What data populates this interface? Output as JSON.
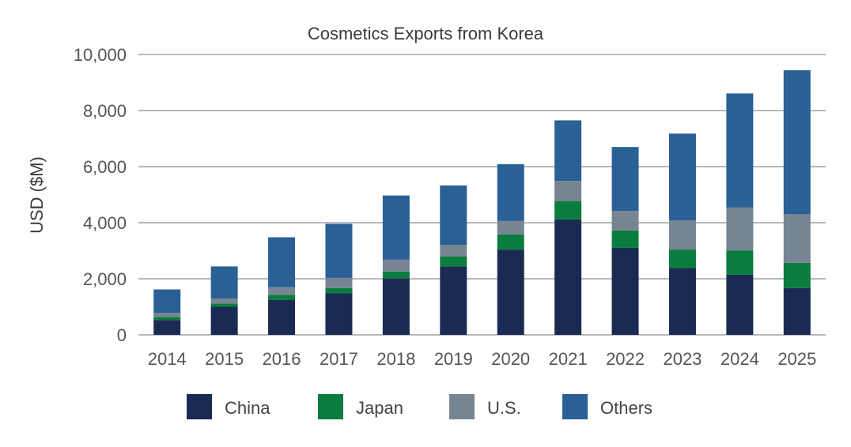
{
  "chart_data": {
    "type": "bar",
    "stacked": true,
    "title": "Cosmetics Exports from Korea",
    "xlabel": "",
    "ylabel": "USD ($M)",
    "ylim": [
      0,
      10000
    ],
    "yticks": [
      0,
      2000,
      4000,
      6000,
      8000,
      10000
    ],
    "ytick_labels": [
      "0",
      "2,000",
      "4,000",
      "6,000",
      "8,000",
      "10,000"
    ],
    "grid": true,
    "legend_position": "bottom",
    "categories": [
      "2014",
      "2015",
      "2016",
      "2017",
      "2018",
      "2019",
      "2020",
      "2021",
      "2022",
      "2023",
      "2024",
      "2025"
    ],
    "series": [
      {
        "name": "China",
        "color": "#1a2a52",
        "values": [
          530,
          1000,
          1250,
          1480,
          2020,
          2440,
          3040,
          4120,
          3100,
          2380,
          2150,
          1670
        ]
      },
      {
        "name": "Japan",
        "color": "#0a7d3e",
        "values": [
          110,
          120,
          180,
          190,
          240,
          360,
          540,
          660,
          620,
          660,
          850,
          900
        ]
      },
      {
        "name": "U.S.",
        "color": "#778592",
        "values": [
          140,
          170,
          270,
          360,
          420,
          410,
          480,
          710,
          700,
          1040,
          1540,
          1730
        ]
      },
      {
        "name": "Others",
        "color": "#2a6095",
        "values": [
          840,
          1150,
          1780,
          1930,
          2290,
          2120,
          2030,
          2160,
          2280,
          3100,
          4070,
          5140
        ]
      }
    ]
  }
}
